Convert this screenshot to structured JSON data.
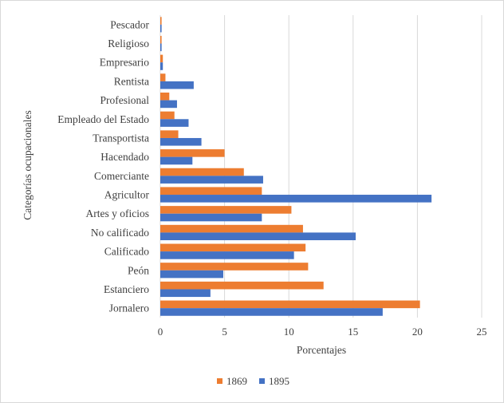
{
  "chart_data": {
    "type": "bar",
    "orientation": "horizontal",
    "title": "",
    "xlabel": "Porcentajes",
    "ylabel": "Categorías ocupacionales",
    "xlim": [
      0,
      25
    ],
    "xticks": [
      "0",
      "5",
      "10",
      "15",
      "20",
      "25"
    ],
    "grid": "vertical",
    "legend_position": "bottom",
    "categories": [
      "Pescador",
      "Religioso",
      "Empresario",
      "Rentista",
      "Profesional",
      "Empleado del Estado",
      "Transportista",
      "Hacendado",
      "Comerciante",
      "Agricultor",
      "Artes y oficios",
      "No calificado",
      "Calificado",
      "Peón",
      "Estanciero",
      "Jornalero"
    ],
    "series": [
      {
        "name": "1869",
        "color": "#ed7d31",
        "values": [
          0.1,
          0.1,
          0.2,
          0.4,
          0.7,
          1.1,
          1.4,
          5.0,
          6.5,
          7.9,
          10.2,
          11.1,
          11.3,
          11.5,
          12.7,
          20.2
        ]
      },
      {
        "name": "1895",
        "color": "#4472c4",
        "values": [
          0.1,
          0.1,
          0.2,
          2.6,
          1.3,
          2.2,
          3.2,
          2.5,
          8.0,
          21.1,
          7.9,
          15.2,
          10.4,
          4.9,
          3.9,
          17.3
        ]
      }
    ]
  }
}
